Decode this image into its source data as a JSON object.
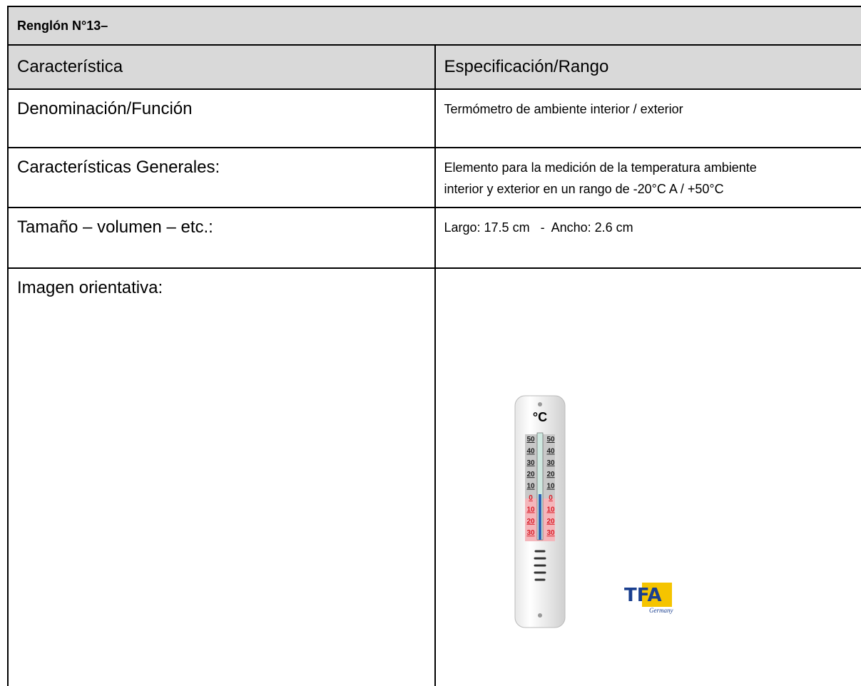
{
  "header": {
    "title": "Renglón N°13–"
  },
  "table": {
    "columns": [
      "Característica",
      "Especificación/Rango"
    ],
    "rows": [
      [
        "Denominación/Función",
        "Termómetro de ambiente interior / exterior"
      ],
      [
        "Características Generales:",
        "Elemento para la medición de la temperatura ambiente interior y exterior en un rango de -20°C A / +50°C"
      ],
      [
        "Tamaño – volumen – etc.:",
        "Largo: 17.5 cm   -  Ancho: 2.6 cm"
      ]
    ]
  },
  "image_row": {
    "label": "Imagen orientativa:",
    "unit": "°C",
    "scale": [
      "50",
      "40",
      "30",
      "20",
      "10",
      "0",
      "10",
      "20",
      "30"
    ],
    "brand": "TFA",
    "brand_sub": "Germany"
  }
}
